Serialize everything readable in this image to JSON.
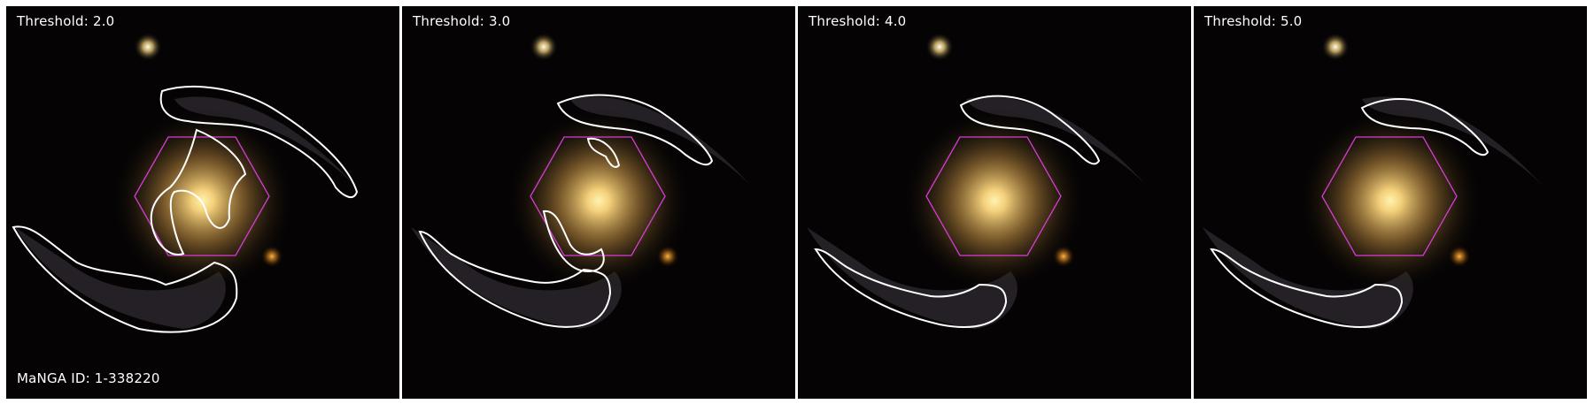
{
  "figure": {
    "manga_id_label": "MaNGA ID: 1-338220",
    "panels": [
      {
        "threshold_label": "Threshold: 2.0"
      },
      {
        "threshold_label": "Threshold: 3.0"
      },
      {
        "threshold_label": "Threshold: 4.0"
      },
      {
        "threshold_label": "Threshold: 5.0"
      }
    ]
  },
  "colors": {
    "background": "#000000",
    "contour": "#ffffff",
    "hexagon": "#d63cd6",
    "galaxy_core": "#f3d07a",
    "bulge_glow": "#c99a48",
    "arms": "#6f6a70",
    "label_text": "#ffffff"
  }
}
